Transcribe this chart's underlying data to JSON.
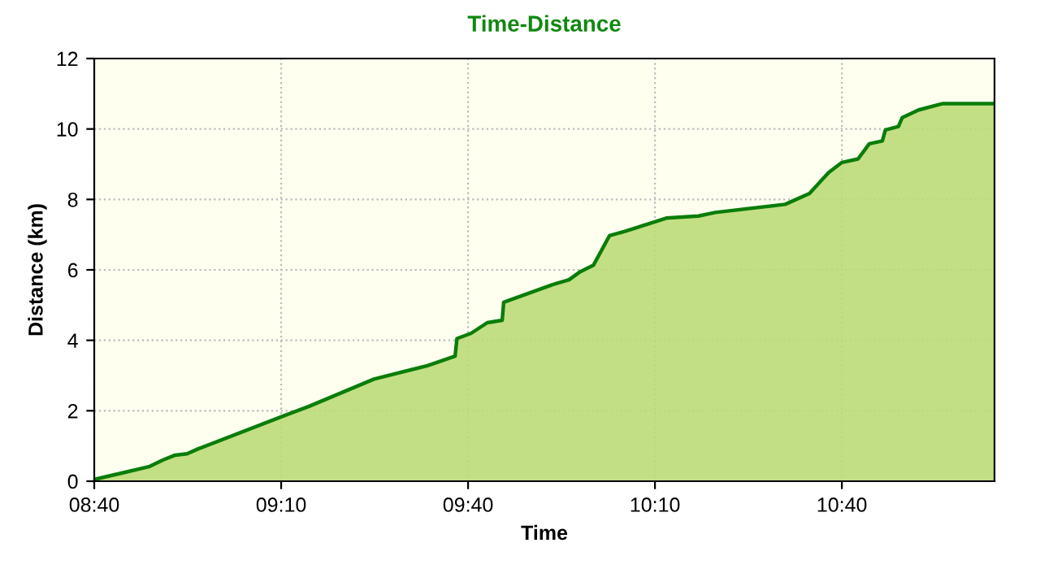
{
  "chart_data": {
    "type": "area",
    "title": "Time-Distance",
    "xlabel": "Time",
    "ylabel": "Distance (km)",
    "x": [
      8.667,
      8.74,
      8.815,
      8.85,
      8.883,
      8.915,
      8.945,
      9.172,
      9.24,
      9.415,
      9.558,
      9.632,
      9.637,
      9.675,
      9.718,
      9.758,
      9.762,
      9.893,
      9.937,
      9.967,
      10.002,
      10.045,
      10.088,
      10.197,
      10.283,
      10.328,
      10.515,
      10.58,
      10.632,
      10.667,
      10.71,
      10.74,
      10.775,
      10.783,
      10.818,
      10.828,
      10.872,
      10.937,
      11.075
    ],
    "series": [
      {
        "color": "#0a7d0a",
        "values": [
          0.05,
          0.23,
          0.42,
          0.6,
          0.74,
          0.78,
          0.92,
          1.85,
          2.12,
          2.9,
          3.28,
          3.55,
          4.05,
          4.2,
          4.5,
          4.57,
          5.08,
          5.58,
          5.72,
          5.95,
          6.13,
          6.97,
          7.1,
          7.47,
          7.53,
          7.63,
          7.86,
          8.17,
          8.77,
          9.05,
          9.15,
          9.58,
          9.66,
          9.97,
          10.07,
          10.32,
          10.54,
          10.72,
          10.72
        ]
      }
    ],
    "xlim": [
      8.6667,
      11.075
    ],
    "ylim": [
      0,
      12
    ],
    "xticks": [
      {
        "value": 8.6667,
        "label": "08:40"
      },
      {
        "value": 9.1667,
        "label": "09:10"
      },
      {
        "value": 9.6667,
        "label": "09:40"
      },
      {
        "value": 10.1667,
        "label": "10:10"
      },
      {
        "value": 10.6667,
        "label": "10:40"
      }
    ],
    "yticks": [
      0,
      2,
      4,
      6,
      8,
      10,
      12
    ],
    "grid": true,
    "legend": false
  }
}
